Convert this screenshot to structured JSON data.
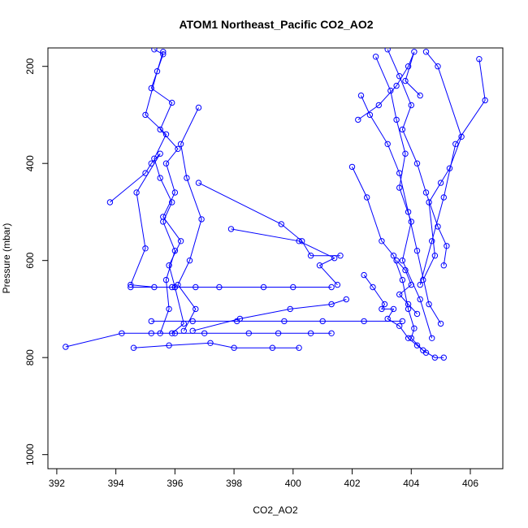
{
  "chart_data": {
    "type": "scatter",
    "title": "ATOM1 Northeast_Pacific CO2_AO2",
    "xlabel": "CO2_AO2",
    "ylabel": "Pressure (mbar)",
    "xlim": [
      391.7,
      407.1
    ],
    "ylim": [
      1029,
      162
    ],
    "y_reversed": true,
    "x_ticks": [
      "392",
      "394",
      "396",
      "398",
      "400",
      "402",
      "404",
      "406"
    ],
    "y_ticks": [
      "200",
      "400",
      "600",
      "800",
      "1000"
    ],
    "grid": false,
    "legend": "none",
    "series_color": "#0000ff",
    "marker": "open-circle",
    "connect_points": true,
    "series": [
      {
        "x": [
          395.3,
          395.6,
          395.2,
          395.9,
          395.5,
          396.1,
          395.7,
          396.0,
          395.6,
          396.2,
          395.8,
          396.0,
          396.3,
          395.9
        ],
        "y": [
          165,
          175,
          245,
          275,
          330,
          370,
          400,
          460,
          510,
          560,
          610,
          655,
          730,
          750
        ]
      },
      {
        "x": [
          395.6,
          395.4,
          395.0,
          395.7,
          395.3,
          395.5,
          395.9,
          395.6,
          396.0,
          395.7,
          395.8,
          395.5
        ],
        "y": [
          170,
          210,
          300,
          340,
          390,
          430,
          480,
          520,
          580,
          640,
          700,
          750
        ]
      },
      {
        "x": [
          396.8,
          396.2,
          396.4,
          396.9,
          396.5,
          396.1,
          396.7,
          396.3
        ],
        "y": [
          285,
          360,
          430,
          515,
          600,
          650,
          700,
          745
        ]
      },
      {
        "x": [
          393.8,
          395.0,
          395.2,
          395.5,
          394.7,
          395.0,
          394.5,
          395.3,
          395.9,
          396.7
        ],
        "y": [
          480,
          420,
          400,
          380,
          460,
          575,
          650,
          655,
          655,
          655
        ]
      },
      {
        "x": [
          392.3,
          394.2,
          395.2,
          396.0,
          397.0,
          398.5,
          399.5,
          400.6,
          401.3
        ],
        "y": [
          778,
          750,
          750,
          750,
          750,
          750,
          750,
          750,
          750
        ]
      },
      {
        "x": [
          394.6,
          395.8,
          397.2,
          398.0,
          399.3,
          400.2
        ],
        "y": [
          780,
          775,
          770,
          780,
          780,
          780
        ]
      },
      {
        "x": [
          396.8,
          399.6,
          400.3,
          400.6,
          401.6
        ],
        "y": [
          440,
          525,
          560,
          590,
          590
        ]
      },
      {
        "x": [
          394.5,
          396.0,
          397.5,
          399.0,
          400.0,
          401.3
        ],
        "y": [
          655,
          655,
          655,
          655,
          655,
          655
        ]
      },
      {
        "x": [
          395.2,
          396.6,
          398.1,
          399.7,
          401.0,
          402.4,
          403.7
        ],
        "y": [
          725,
          725,
          725,
          725,
          725,
          725,
          725
        ]
      },
      {
        "x": [
          396.6,
          398.2,
          399.9,
          401.3,
          401.8
        ],
        "y": [
          745,
          720,
          700,
          690,
          680
        ]
      },
      {
        "x": [
          397.9,
          400.2,
          401.4,
          400.9,
          401.5
        ],
        "y": [
          535,
          560,
          595,
          610,
          650
        ]
      },
      {
        "x": [
          402.0,
          402.5,
          403.0,
          403.4,
          403.7,
          403.9,
          404.1,
          404.0,
          404.4,
          404.8,
          405.1
        ],
        "y": [
          407,
          470,
          560,
          590,
          640,
          700,
          740,
          760,
          785,
          800,
          800
        ]
      },
      {
        "x": [
          402.3,
          402.6,
          403.2,
          403.6,
          403.9,
          404.2,
          404.6,
          405.0
        ],
        "y": [
          260,
          300,
          360,
          420,
          500,
          580,
          690,
          730
        ]
      },
      {
        "x": [
          402.8,
          403.3,
          403.5,
          403.8,
          403.6,
          404.0,
          403.7,
          404.3,
          404.7
        ],
        "y": [
          180,
          250,
          310,
          380,
          450,
          520,
          600,
          680,
          760
        ]
      },
      {
        "x": [
          403.2,
          403.6,
          404.0,
          403.7,
          404.2,
          404.5,
          404.9,
          405.2,
          405.1
        ],
        "y": [
          165,
          220,
          280,
          330,
          400,
          460,
          530,
          570,
          610
        ]
      },
      {
        "x": [
          404.5,
          404.9,
          405.7,
          405.3,
          405.0,
          404.6,
          404.8,
          404.4
        ],
        "y": [
          170,
          200,
          345,
          410,
          440,
          480,
          590,
          640
        ]
      },
      {
        "x": [
          406.3,
          406.5,
          405.5,
          405.1,
          404.7,
          404.3
        ],
        "y": [
          185,
          270,
          360,
          470,
          560,
          650
        ]
      },
      {
        "x": [
          402.4,
          402.7,
          403.1,
          403.0,
          403.4,
          403.2,
          403.6,
          403.9,
          404.2,
          404.5
        ],
        "y": [
          630,
          655,
          690,
          700,
          700,
          720,
          735,
          760,
          775,
          790
        ]
      },
      {
        "x": [
          402.2,
          402.9,
          403.5,
          403.9,
          404.1,
          403.8,
          404.3
        ],
        "y": [
          310,
          280,
          240,
          200,
          170,
          230,
          260
        ]
      },
      {
        "x": [
          403.5,
          403.8,
          404.0,
          403.6,
          403.9,
          404.2
        ],
        "y": [
          600,
          620,
          650,
          670,
          690,
          710
        ]
      }
    ]
  }
}
